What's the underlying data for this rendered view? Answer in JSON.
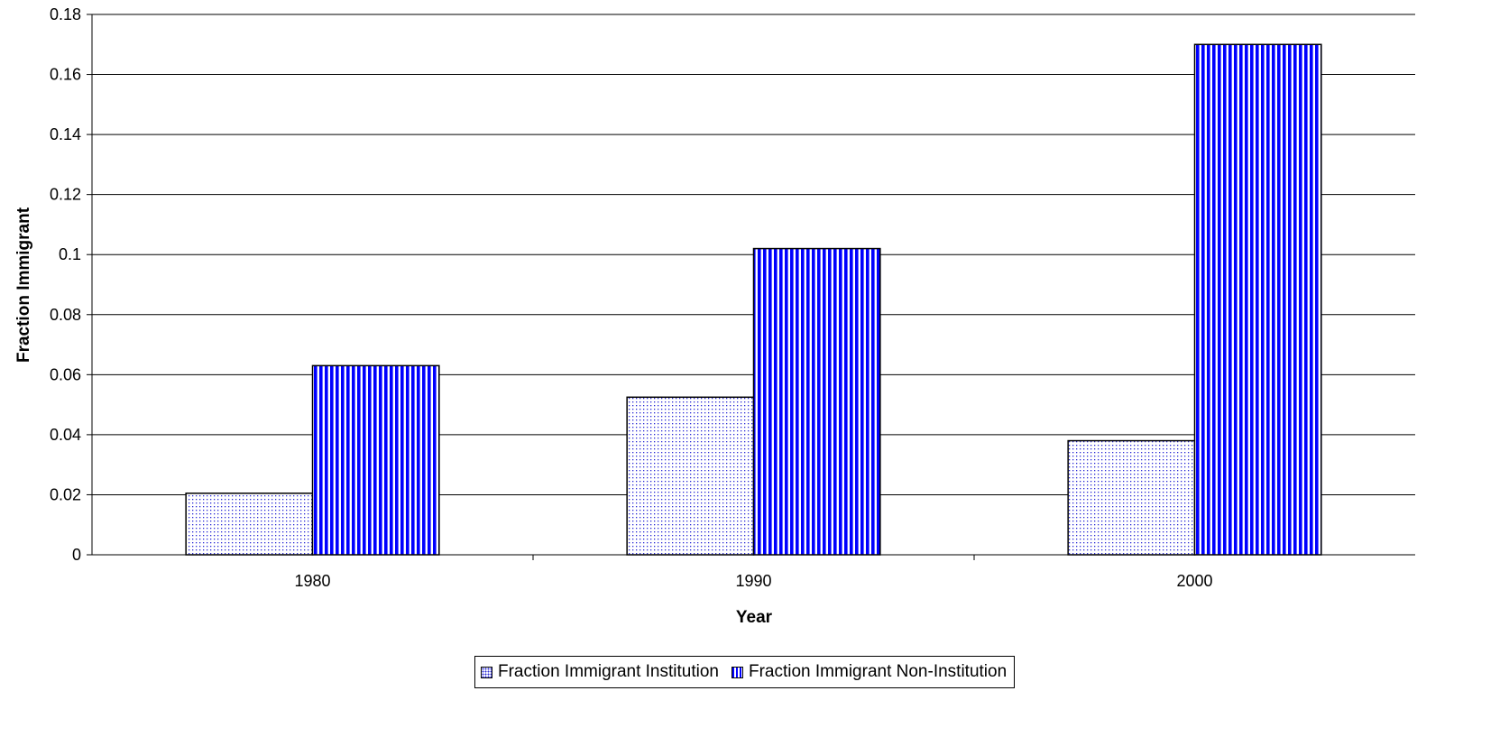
{
  "chart_data": {
    "type": "bar",
    "categories": [
      "1980",
      "1990",
      "2000"
    ],
    "series": [
      {
        "name": "Fraction Immigrant Institution",
        "values": [
          0.0205,
          0.0525,
          0.038
        ],
        "pattern": "dotted",
        "color": "#2a2ad6"
      },
      {
        "name": "Fraction Immigrant Non-Institution",
        "values": [
          0.063,
          0.102,
          0.17
        ],
        "pattern": "vertical-stripes",
        "color": "#0000ff"
      }
    ],
    "xlabel": "Year",
    "ylabel": "Fraction Immigrant",
    "ylim": [
      0,
      0.18
    ],
    "yticks": [
      "0",
      "0.02",
      "0.04",
      "0.06",
      "0.08",
      "0.1",
      "0.12",
      "0.14",
      "0.16",
      "0.18"
    ],
    "grid": true,
    "legend_position": "bottom"
  }
}
